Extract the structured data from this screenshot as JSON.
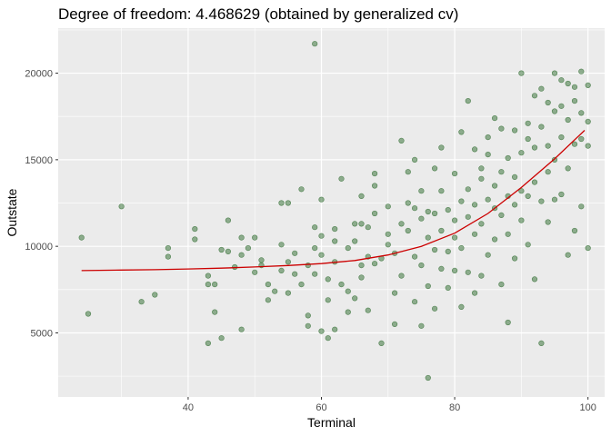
{
  "chart_data": {
    "type": "scatter",
    "title": "Degree of freedom: 4.468629 (obtained by generalized cv)",
    "xlabel": "Terminal",
    "ylabel": "Outstate",
    "xlim": [
      20.5,
      102.5
    ],
    "ylim": [
      1300,
      22600
    ],
    "x_ticks": [
      40,
      60,
      80,
      100
    ],
    "y_ticks": [
      5000,
      10000,
      15000,
      20000
    ],
    "x_tick_labels": [
      "40",
      "60",
      "80",
      "100"
    ],
    "y_tick_labels": [
      "5000",
      "10000",
      "15000",
      "20000"
    ],
    "grid": true,
    "colors": {
      "panel": "#ebebeb",
      "grid": "#ffffff",
      "points": "#2e6b2e",
      "line": "#cc0000"
    },
    "series": [
      {
        "kind": "points",
        "points": [
          [
            24,
            10500
          ],
          [
            25,
            6100
          ],
          [
            30,
            12300
          ],
          [
            33,
            6800
          ],
          [
            35,
            7200
          ],
          [
            37,
            9900
          ],
          [
            37,
            9400
          ],
          [
            41,
            11000
          ],
          [
            41,
            10400
          ],
          [
            43,
            8300
          ],
          [
            43,
            4400
          ],
          [
            43,
            7800
          ],
          [
            44,
            7800
          ],
          [
            44,
            6200
          ],
          [
            45,
            9800
          ],
          [
            45,
            4700
          ],
          [
            46,
            11500
          ],
          [
            46,
            9700
          ],
          [
            47,
            8800
          ],
          [
            48,
            10500
          ],
          [
            48,
            5200
          ],
          [
            48,
            9500
          ],
          [
            49,
            9900
          ],
          [
            50,
            8500
          ],
          [
            50,
            10500
          ],
          [
            51,
            9200
          ],
          [
            51,
            8900
          ],
          [
            52,
            7800
          ],
          [
            52,
            6900
          ],
          [
            53,
            7400
          ],
          [
            54,
            12500
          ],
          [
            54,
            10100
          ],
          [
            54,
            8600
          ],
          [
            55,
            7300
          ],
          [
            55,
            9100
          ],
          [
            55,
            12500
          ],
          [
            56,
            8400
          ],
          [
            56,
            9600
          ],
          [
            57,
            13300
          ],
          [
            57,
            7800
          ],
          [
            58,
            6000
          ],
          [
            58,
            8900
          ],
          [
            58,
            5400
          ],
          [
            59,
            21700
          ],
          [
            59,
            9900
          ],
          [
            59,
            11100
          ],
          [
            59,
            8400
          ],
          [
            60,
            12700
          ],
          [
            60,
            10600
          ],
          [
            60,
            9500
          ],
          [
            60,
            5100
          ],
          [
            61,
            4700
          ],
          [
            61,
            8100
          ],
          [
            61,
            6900
          ],
          [
            62,
            11000
          ],
          [
            62,
            9100
          ],
          [
            62,
            5200
          ],
          [
            62,
            10300
          ],
          [
            63,
            7800
          ],
          [
            63,
            13900
          ],
          [
            64,
            7400
          ],
          [
            64,
            6200
          ],
          [
            64,
            9900
          ],
          [
            65,
            10300
          ],
          [
            65,
            11300
          ],
          [
            65,
            7000
          ],
          [
            66,
            8900
          ],
          [
            66,
            11300
          ],
          [
            66,
            8200
          ],
          [
            66,
            12900
          ],
          [
            67,
            11100
          ],
          [
            67,
            9400
          ],
          [
            67,
            6300
          ],
          [
            68,
            14200
          ],
          [
            68,
            11900
          ],
          [
            68,
            9000
          ],
          [
            68,
            13500
          ],
          [
            69,
            9300
          ],
          [
            69,
            4400
          ],
          [
            70,
            12300
          ],
          [
            70,
            10700
          ],
          [
            70,
            10100
          ],
          [
            71,
            9600
          ],
          [
            71,
            7300
          ],
          [
            71,
            5500
          ],
          [
            72,
            11300
          ],
          [
            72,
            16100
          ],
          [
            72,
            8300
          ],
          [
            73,
            12500
          ],
          [
            73,
            14300
          ],
          [
            73,
            10900
          ],
          [
            74,
            12200
          ],
          [
            74,
            6800
          ],
          [
            74,
            15000
          ],
          [
            74,
            9400
          ],
          [
            75,
            8900
          ],
          [
            75,
            11600
          ],
          [
            75,
            5400
          ],
          [
            75,
            13200
          ],
          [
            76,
            2400
          ],
          [
            76,
            12000
          ],
          [
            76,
            7700
          ],
          [
            76,
            10500
          ],
          [
            77,
            9800
          ],
          [
            77,
            11900
          ],
          [
            77,
            14500
          ],
          [
            77,
            6400
          ],
          [
            78,
            13200
          ],
          [
            78,
            10900
          ],
          [
            78,
            8700
          ],
          [
            78,
            15700
          ],
          [
            79,
            12100
          ],
          [
            79,
            9700
          ],
          [
            79,
            7600
          ],
          [
            80,
            14200
          ],
          [
            80,
            11500
          ],
          [
            80,
            10500
          ],
          [
            80,
            8600
          ],
          [
            81,
            16600
          ],
          [
            81,
            12600
          ],
          [
            81,
            9900
          ],
          [
            81,
            6500
          ],
          [
            82,
            18400
          ],
          [
            82,
            13300
          ],
          [
            82,
            11700
          ],
          [
            82,
            8500
          ],
          [
            83,
            15600
          ],
          [
            83,
            12400
          ],
          [
            83,
            10700
          ],
          [
            83,
            7300
          ],
          [
            84,
            14500
          ],
          [
            84,
            13900
          ],
          [
            84,
            11300
          ],
          [
            84,
            8300
          ],
          [
            85,
            16300
          ],
          [
            85,
            12700
          ],
          [
            85,
            15300
          ],
          [
            85,
            9500
          ],
          [
            86,
            17400
          ],
          [
            86,
            13500
          ],
          [
            86,
            12200
          ],
          [
            86,
            10400
          ],
          [
            87,
            16800
          ],
          [
            87,
            14300
          ],
          [
            87,
            11800
          ],
          [
            87,
            7800
          ],
          [
            88,
            15100
          ],
          [
            88,
            12900
          ],
          [
            88,
            10700
          ],
          [
            88,
            5600
          ],
          [
            89,
            16700
          ],
          [
            89,
            14000
          ],
          [
            89,
            12400
          ],
          [
            89,
            9300
          ],
          [
            90,
            20000
          ],
          [
            90,
            15400
          ],
          [
            90,
            13200
          ],
          [
            90,
            11500
          ],
          [
            91,
            17100
          ],
          [
            91,
            16200
          ],
          [
            91,
            12900
          ],
          [
            91,
            10100
          ],
          [
            92,
            18700
          ],
          [
            92,
            15700
          ],
          [
            92,
            13700
          ],
          [
            92,
            8100
          ],
          [
            93,
            19100
          ],
          [
            93,
            16900
          ],
          [
            93,
            12600
          ],
          [
            93,
            4400
          ],
          [
            94,
            18300
          ],
          [
            94,
            15800
          ],
          [
            94,
            14300
          ],
          [
            94,
            11400
          ],
          [
            95,
            20000
          ],
          [
            95,
            17800
          ],
          [
            95,
            15000
          ],
          [
            95,
            12700
          ],
          [
            96,
            19600
          ],
          [
            96,
            18100
          ],
          [
            96,
            16300
          ],
          [
            96,
            13000
          ],
          [
            97,
            19400
          ],
          [
            97,
            17300
          ],
          [
            97,
            14500
          ],
          [
            97,
            9500
          ],
          [
            98,
            19200
          ],
          [
            98,
            18400
          ],
          [
            98,
            15900
          ],
          [
            98,
            10900
          ],
          [
            99,
            20100
          ],
          [
            99,
            17700
          ],
          [
            99,
            16200
          ],
          [
            99,
            12300
          ],
          [
            100,
            19300
          ],
          [
            100,
            17200
          ],
          [
            100,
            15800
          ],
          [
            100,
            9900
          ]
        ]
      },
      {
        "kind": "smoothing-spline",
        "points": [
          [
            24,
            8600
          ],
          [
            30,
            8630
          ],
          [
            35,
            8650
          ],
          [
            40,
            8690
          ],
          [
            45,
            8740
          ],
          [
            50,
            8810
          ],
          [
            55,
            8890
          ],
          [
            60,
            9000
          ],
          [
            65,
            9180
          ],
          [
            70,
            9500
          ],
          [
            75,
            10000
          ],
          [
            80,
            10760
          ],
          [
            85,
            11900
          ],
          [
            90,
            13400
          ],
          [
            95,
            15050
          ],
          [
            99.5,
            16700
          ]
        ]
      }
    ]
  }
}
